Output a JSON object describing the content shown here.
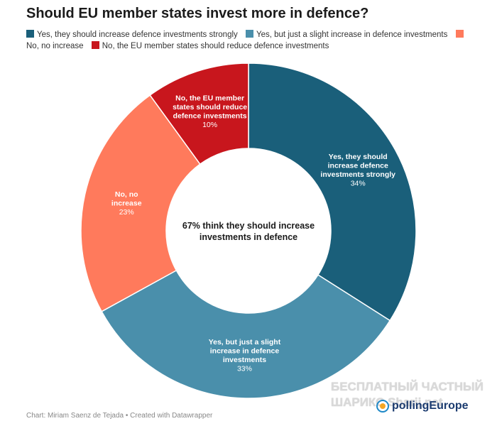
{
  "chart_data": {
    "type": "pie",
    "donut": true,
    "title": "Should EU member states invest more in defence?",
    "center_label": "67% think they should increase investments in defence",
    "legend_position": "top",
    "categories": [
      "Yes, they should increase defence investments strongly",
      "Yes, but just a slight increase in defence investments",
      "No, no increase",
      "No, the EU member states should reduce defence investments"
    ],
    "values": [
      34,
      33,
      23,
      10
    ],
    "colors": [
      "#1a5f7a",
      "#4a8fab",
      "#ff7a5c",
      "#c8161d"
    ],
    "slice_labels": [
      {
        "lines": [
          "Yes, they should",
          "increase defence",
          "investments strongly"
        ],
        "pct": "34%"
      },
      {
        "lines": [
          "Yes, but just a slight",
          "increase in defence",
          "investments"
        ],
        "pct": "33%"
      },
      {
        "lines": [
          "No, no",
          "increase"
        ],
        "pct": "23%"
      },
      {
        "lines": [
          "No, the EU member",
          "states should reduce",
          "defence investments"
        ],
        "pct": "10%"
      }
    ]
  },
  "footer": "Chart: Miriam Saenz de Tejada • Created with Datawrapper",
  "watermark": {
    "line1": "БЕСПЛАТНЫЙ ЧАСТНЫЙ",
    "line2": "ШАРИКС Sharij.net"
  },
  "logo": {
    "text": "pollingEurope",
    "icon": "polling-europe-logo-icon"
  }
}
